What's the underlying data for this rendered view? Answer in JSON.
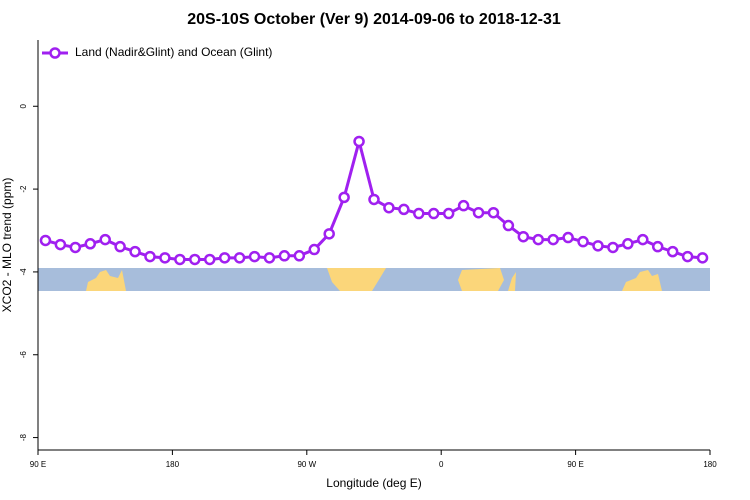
{
  "chart_data": {
    "type": "line",
    "title": "20S-10S October (Ver 9)   2014-09-06 to 2018-12-31",
    "x_label": "Longitude (deg E)",
    "y_label": "XCO2 - MLO trend (ppm)",
    "x": [
      95,
      105,
      115,
      125,
      135,
      145,
      155,
      165,
      175,
      185,
      195,
      205,
      215,
      225,
      235,
      245,
      255,
      265,
      275,
      285,
      295,
      305,
      315,
      325,
      335,
      345,
      355,
      365,
      375,
      385,
      395,
      405,
      415,
      425,
      435,
      445,
      455,
      465,
      475,
      485,
      495,
      505,
      515,
      525,
      535
    ],
    "series": [
      {
        "name": "Land (Nadir&Glint) and Ocean (Glint)",
        "color": "#a020f0",
        "values": [
          -3.24,
          -3.34,
          -3.41,
          -3.32,
          -3.22,
          -3.39,
          -3.51,
          -3.63,
          -3.66,
          -3.7,
          -3.7,
          -3.7,
          -3.66,
          -3.66,
          -3.63,
          -3.66,
          -3.61,
          -3.61,
          -3.46,
          -3.08,
          -2.2,
          -0.85,
          -2.25,
          -2.45,
          -2.49,
          -2.59,
          -2.59,
          -2.59,
          -2.4,
          -2.57,
          -2.57,
          -2.88,
          -3.15,
          -3.22,
          -3.22,
          -3.17,
          -3.27,
          -3.37,
          -3.41,
          -3.32,
          -3.22,
          -3.39,
          -3.51,
          -3.63,
          -3.66
        ]
      }
    ],
    "xlim": [
      90,
      540
    ],
    "xticks": [
      {
        "value": 90,
        "label": "90 E"
      },
      180,
      {
        "value": 270,
        "label": "90 W"
      },
      {
        "value": 360,
        "label": "0"
      },
      {
        "value": 450,
        "label": "90 E"
      },
      {
        "value": 540,
        "label": "180"
      }
    ],
    "ylim": [
      -8.3,
      1.6
    ],
    "yticks": [
      0,
      -2,
      -4,
      -6,
      -8
    ],
    "legend": "top-left"
  }
}
